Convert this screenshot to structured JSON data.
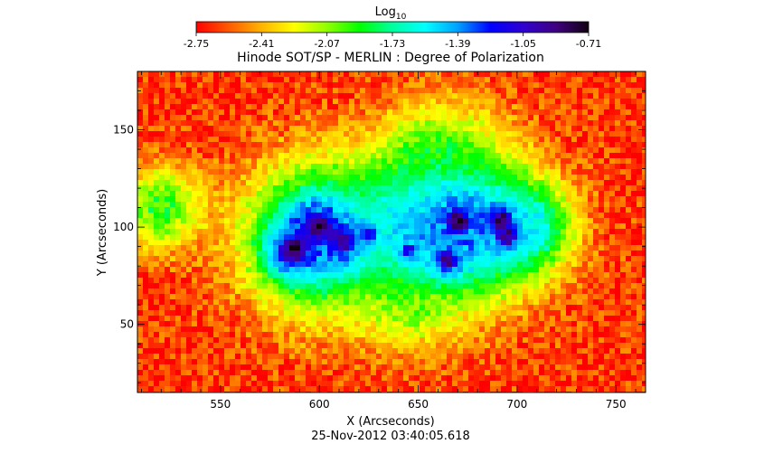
{
  "chart_data": {
    "type": "heatmap",
    "title": "Hinode SOT/SP - MERLIN : Degree of Polarization",
    "xlabel": "X (Arcseconds)",
    "ylabel": "Y (Arcseconds)",
    "xlim": [
      508,
      765
    ],
    "ylim": [
      15,
      180
    ],
    "xticks": [
      550,
      600,
      650,
      700,
      750
    ],
    "yticks": [
      50,
      100,
      150
    ],
    "timestamp": "25-Nov-2012 03:40:05.618",
    "colorbar": {
      "label_main": "Log",
      "label_sub": "10",
      "range": [
        -2.75,
        -0.71
      ],
      "tick_labels": [
        "-2.75",
        "-2.41",
        "-2.07",
        "-1.73",
        "-1.39",
        "-1.05",
        "-0.71"
      ],
      "colormap": [
        "#ff0000",
        "#ff5a00",
        "#ffb400",
        "#ffff00",
        "#90ff00",
        "#00ff00",
        "#00ffa0",
        "#00ffff",
        "#00a0ff",
        "#0000ff",
        "#3000d0",
        "#400080",
        "#100010"
      ]
    },
    "background_level": -2.65,
    "features": [
      {
        "name": "spot-1",
        "x": 587,
        "y": 88,
        "radius": 9,
        "level": -0.75
      },
      {
        "name": "spot-2",
        "x": 600,
        "y": 101,
        "radius": 8,
        "level": -0.75
      },
      {
        "name": "spot-3",
        "x": 612,
        "y": 92,
        "radius": 7,
        "level": -0.85
      },
      {
        "name": "spot-4",
        "x": 670,
        "y": 103,
        "radius": 8,
        "level": -0.75
      },
      {
        "name": "spot-5",
        "x": 665,
        "y": 83,
        "radius": 6,
        "level": -0.85
      },
      {
        "name": "spot-6",
        "x": 692,
        "y": 104,
        "radius": 6,
        "level": -0.8
      },
      {
        "name": "spot-7",
        "x": 695,
        "y": 95,
        "radius": 6,
        "level": -0.85
      },
      {
        "name": "spot-8",
        "x": 645,
        "y": 88,
        "radius": 4,
        "level": -0.95
      },
      {
        "name": "spot-9",
        "x": 625,
        "y": 97,
        "radius": 4,
        "level": -1.0
      },
      {
        "name": "plage-west",
        "x": 600,
        "y": 95,
        "radius": 26,
        "level": -1.3
      },
      {
        "name": "plage-center",
        "x": 645,
        "y": 100,
        "radius": 22,
        "level": -1.6
      },
      {
        "name": "plage-east",
        "x": 675,
        "y": 100,
        "radius": 26,
        "level": -1.35
      },
      {
        "name": "plage-far-east",
        "x": 705,
        "y": 100,
        "radius": 15,
        "level": -1.5
      },
      {
        "name": "network-north",
        "x": 660,
        "y": 130,
        "radius": 22,
        "level": -1.85
      },
      {
        "name": "network-south",
        "x": 645,
        "y": 65,
        "radius": 18,
        "level": -2.0
      },
      {
        "name": "network-left",
        "x": 520,
        "y": 110,
        "radius": 15,
        "level": -1.9
      }
    ]
  }
}
